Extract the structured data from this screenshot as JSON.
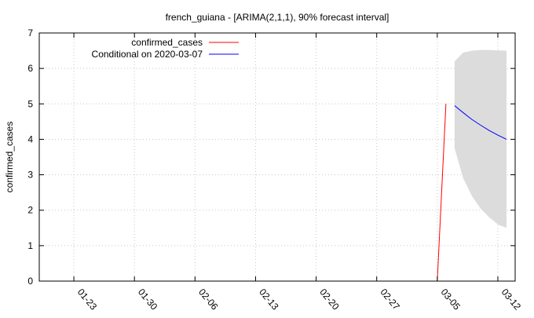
{
  "chart_data": {
    "type": "line",
    "title": "french_guiana -  [ARIMA(2,1,1), 90% forecast interval]",
    "xlabel": "",
    "ylabel": "confirmed_cases",
    "x_type": "date",
    "xlim": [
      "2020-01-19",
      "2020-03-14"
    ],
    "ylim": [
      0,
      7
    ],
    "yticks": [
      0,
      1,
      2,
      3,
      4,
      5,
      6,
      7
    ],
    "xticks": [
      {
        "date": "2020-01-23",
        "label": "01-23"
      },
      {
        "date": "2020-01-30",
        "label": "01-30"
      },
      {
        "date": "2020-02-06",
        "label": "02-06"
      },
      {
        "date": "2020-02-13",
        "label": "02-13"
      },
      {
        "date": "2020-02-20",
        "label": "02-20"
      },
      {
        "date": "2020-02-27",
        "label": "02-27"
      },
      {
        "date": "2020-03-05",
        "label": "03-05"
      },
      {
        "date": "2020-03-12",
        "label": "03-12"
      }
    ],
    "grid": true,
    "legend_position": "top-left",
    "series": [
      {
        "name": "confirmed_cases",
        "color": "#ff0000",
        "points": [
          {
            "x": "2020-03-05",
            "y": 0
          },
          {
            "x": "2020-03-06",
            "y": 5
          }
        ]
      },
      {
        "name": "Conditional on 2020-03-07",
        "color": "#0000ff",
        "points": [
          {
            "x": "2020-03-07",
            "y": 4.95
          },
          {
            "x": "2020-03-08",
            "y": 4.75
          },
          {
            "x": "2020-03-09",
            "y": 4.56
          },
          {
            "x": "2020-03-10",
            "y": 4.4
          },
          {
            "x": "2020-03-11",
            "y": 4.25
          },
          {
            "x": "2020-03-12",
            "y": 4.12
          },
          {
            "x": "2020-03-13",
            "y": 4.0
          }
        ]
      }
    ],
    "interval": {
      "label": "90% forecast interval",
      "color": "#dcdcdc",
      "upper": [
        {
          "x": "2020-03-07",
          "y": 6.2
        },
        {
          "x": "2020-03-08",
          "y": 6.45
        },
        {
          "x": "2020-03-09",
          "y": 6.5
        },
        {
          "x": "2020-03-10",
          "y": 6.52
        },
        {
          "x": "2020-03-11",
          "y": 6.52
        },
        {
          "x": "2020-03-12",
          "y": 6.51
        },
        {
          "x": "2020-03-13",
          "y": 6.5
        }
      ],
      "lower": [
        {
          "x": "2020-03-07",
          "y": 3.75
        },
        {
          "x": "2020-03-08",
          "y": 2.9
        },
        {
          "x": "2020-03-09",
          "y": 2.4
        },
        {
          "x": "2020-03-10",
          "y": 2.05
        },
        {
          "x": "2020-03-11",
          "y": 1.8
        },
        {
          "x": "2020-03-12",
          "y": 1.6
        },
        {
          "x": "2020-03-13",
          "y": 1.5
        }
      ]
    }
  }
}
